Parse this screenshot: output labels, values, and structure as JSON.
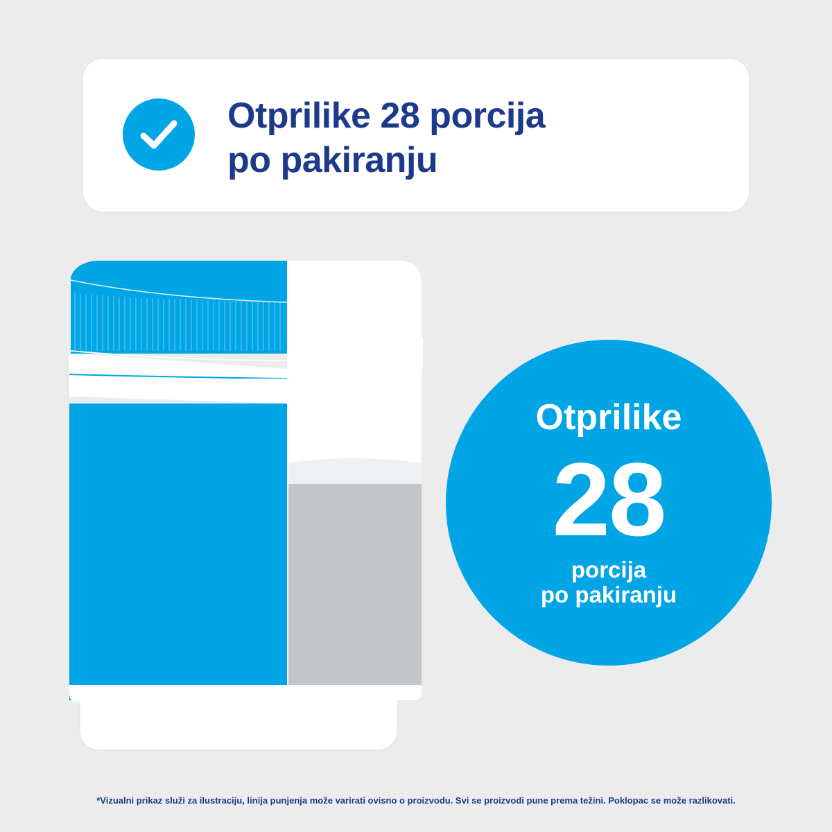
{
  "colors": {
    "background": "#ececec",
    "brand_blue": "#00a5e6",
    "navy_text": "#1d3a8a",
    "powder_grey": "#c3c6c9",
    "white": "#ffffff"
  },
  "banner": {
    "icon": "checkmark-icon",
    "title_line1": "Otprilike 28 porcija",
    "title_line2": "po pakiranju"
  },
  "illustration": {
    "type": "half-cutaway supplement jar",
    "fill_level": 0.55
  },
  "servings_badge": {
    "label": "Otprilike",
    "number": "28",
    "unit_line1": "porcija",
    "unit_line2": "po pakiranju"
  },
  "footer": {
    "disclaimer": "*Vizualni prikaz služi za ilustraciju, linija punjenja može varirati ovisno o proizvodu. Svi se proizvodi pune prema težini. Poklopac se može razlikovati."
  }
}
